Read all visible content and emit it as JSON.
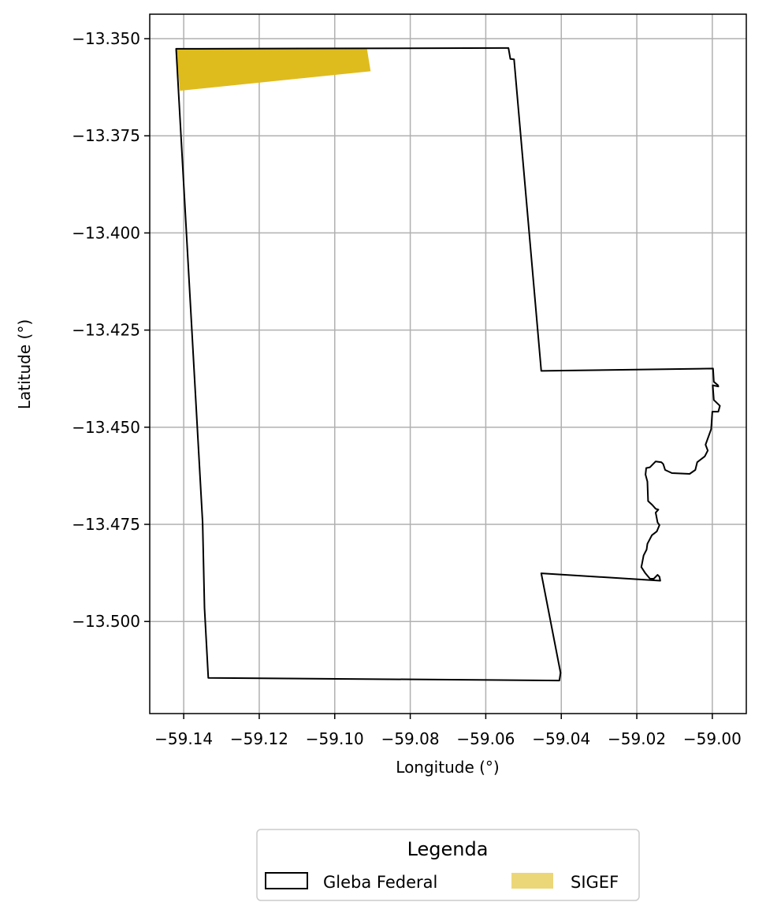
{
  "chart_data": {
    "type": "map",
    "xlabel": "Longitude (°)",
    "ylabel": "Latitude (°)",
    "xlim": [
      -59.149,
      -58.991
    ],
    "ylim": [
      -13.5237,
      -13.3437
    ],
    "grid": true,
    "x_ticks": [
      -59.14,
      -59.12,
      -59.1,
      -59.08,
      -59.06,
      -59.04,
      -59.02,
      -59.0
    ],
    "x_tick_labels": [
      "−59.14",
      "−59.12",
      "−59.10",
      "−59.08",
      "−59.06",
      "−59.04",
      "−59.02",
      "−59.00"
    ],
    "y_ticks": [
      -13.35,
      -13.375,
      -13.4,
      -13.425,
      -13.45,
      -13.475,
      -13.5
    ],
    "y_tick_labels": [
      "−13.350",
      "−13.375",
      "−13.400",
      "−13.425",
      "−13.450",
      "−13.475",
      "−13.500"
    ],
    "legend": {
      "title": "Legenda",
      "placement": "bottom-center, below plot",
      "entries": [
        {
          "label": "Gleba Federal",
          "style": "outline",
          "color": "#000000"
        },
        {
          "label": "SIGEF",
          "style": "fill",
          "color": "#dfbc1e"
        }
      ]
    },
    "layers": [
      {
        "name": "Gleba Federal",
        "type": "polygon-outline",
        "color": "#000000",
        "coords": [
          [
            -59.142,
            -13.3526
          ],
          [
            -59.054,
            -13.3524
          ],
          [
            -59.0535,
            -13.3552
          ],
          [
            -59.0525,
            -13.3553
          ],
          [
            -59.0453,
            -13.4355
          ],
          [
            -58.9998,
            -13.4349
          ],
          [
            -58.9996,
            -13.4383
          ],
          [
            -58.9985,
            -13.4392
          ],
          [
            -58.9984,
            -13.4395
          ],
          [
            -58.9999,
            -13.4392
          ],
          [
            -58.9996,
            -13.443
          ],
          [
            -58.998,
            -13.4445
          ],
          [
            -58.9984,
            -13.446
          ],
          [
            -59.0,
            -13.446
          ],
          [
            -59.0003,
            -13.4505
          ],
          [
            -59.0018,
            -13.4545
          ],
          [
            -59.0012,
            -13.456
          ],
          [
            -59.002,
            -13.4575
          ],
          [
            -59.004,
            -13.459
          ],
          [
            -59.0045,
            -13.461
          ],
          [
            -59.006,
            -13.462
          ],
          [
            -59.0107,
            -13.4618
          ],
          [
            -59.0125,
            -13.461
          ],
          [
            -59.013,
            -13.4595
          ],
          [
            -59.0135,
            -13.459
          ],
          [
            -59.015,
            -13.4588
          ],
          [
            -59.0165,
            -13.4603
          ],
          [
            -59.0175,
            -13.4605
          ],
          [
            -59.0177,
            -13.4622
          ],
          [
            -59.0172,
            -13.464
          ],
          [
            -59.017,
            -13.469
          ],
          [
            -59.0159,
            -13.47
          ],
          [
            -59.015,
            -13.471
          ],
          [
            -59.0143,
            -13.4712
          ],
          [
            -59.015,
            -13.472
          ],
          [
            -59.0148,
            -13.473
          ],
          [
            -59.0145,
            -13.4745
          ],
          [
            -59.014,
            -13.4752
          ],
          [
            -59.0147,
            -13.4768
          ],
          [
            -59.016,
            -13.4778
          ],
          [
            -59.0172,
            -13.48
          ],
          [
            -59.0174,
            -13.4815
          ],
          [
            -59.0182,
            -13.483
          ],
          [
            -59.0186,
            -13.485
          ],
          [
            -59.0188,
            -13.486
          ],
          [
            -59.0178,
            -13.4875
          ],
          [
            -59.0165,
            -13.489
          ],
          [
            -59.0155,
            -13.489
          ],
          [
            -59.0145,
            -13.488
          ],
          [
            -59.014,
            -13.4885
          ],
          [
            -59.0138,
            -13.4895
          ],
          [
            -59.0453,
            -13.4876
          ],
          [
            -59.0402,
            -13.5132
          ],
          [
            -59.0405,
            -13.5152
          ],
          [
            -59.1335,
            -13.5145
          ],
          [
            -59.1345,
            -13.4965
          ],
          [
            -59.135,
            -13.4745
          ],
          [
            -59.142,
            -13.3526
          ]
        ]
      },
      {
        "name": "SIGEF",
        "type": "polygon-fill",
        "color": "#dfbc1e",
        "coords": [
          [
            -59.142,
            -13.3526
          ],
          [
            -59.0915,
            -13.3524
          ],
          [
            -59.0905,
            -13.3584
          ],
          [
            -59.141,
            -13.3634
          ]
        ]
      }
    ]
  }
}
